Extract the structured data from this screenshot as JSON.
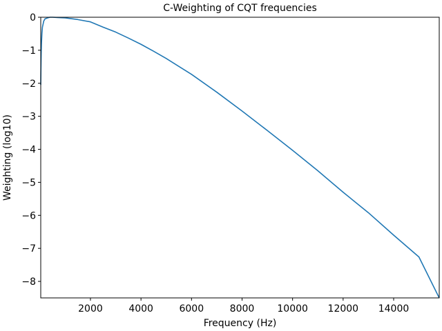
{
  "chart_data": {
    "type": "line",
    "title": "C-Weighting of CQT frequencies",
    "xlabel": "Frequency (Hz)",
    "ylabel": "Weighting (log10)",
    "xlim": [
      32.7,
      15804
    ],
    "ylim": [
      -8.5,
      0
    ],
    "x_ticks": [
      2000,
      4000,
      6000,
      8000,
      10000,
      12000,
      14000
    ],
    "x_tick_labels": [
      "2000",
      "4000",
      "6000",
      "8000",
      "10000",
      "12000",
      "14000"
    ],
    "y_ticks": [
      0,
      -1,
      -2,
      -3,
      -4,
      -5,
      -6,
      -7,
      -8
    ],
    "y_tick_labels": [
      "0",
      "−1",
      "−2",
      "−3",
      "−4",
      "−5",
      "−6",
      "−7",
      "−8"
    ],
    "grid": false,
    "series": [
      {
        "color": "#1f77b4",
        "x": [
          32.7,
          40,
          50,
          60,
          80,
          100,
          150,
          200,
          300,
          400,
          500,
          700,
          1000,
          1500,
          2000,
          2500,
          3000,
          3500,
          4000,
          4500,
          5000,
          6000,
          7000,
          8000,
          9000,
          10000,
          11000,
          12000,
          13000,
          14000,
          15000,
          15804
        ],
        "values": [
          -2.05,
          -1.58,
          -1.12,
          -0.82,
          -0.48,
          -0.3,
          -0.12,
          -0.05,
          -0.02,
          0.0,
          0.0,
          -0.01,
          -0.02,
          -0.07,
          -0.14,
          -0.3,
          -0.45,
          -0.63,
          -0.82,
          -1.03,
          -1.25,
          -1.73,
          -2.27,
          -2.84,
          -3.43,
          -4.03,
          -4.65,
          -5.3,
          -5.92,
          -6.6,
          -7.26,
          -8.5
        ]
      }
    ]
  }
}
